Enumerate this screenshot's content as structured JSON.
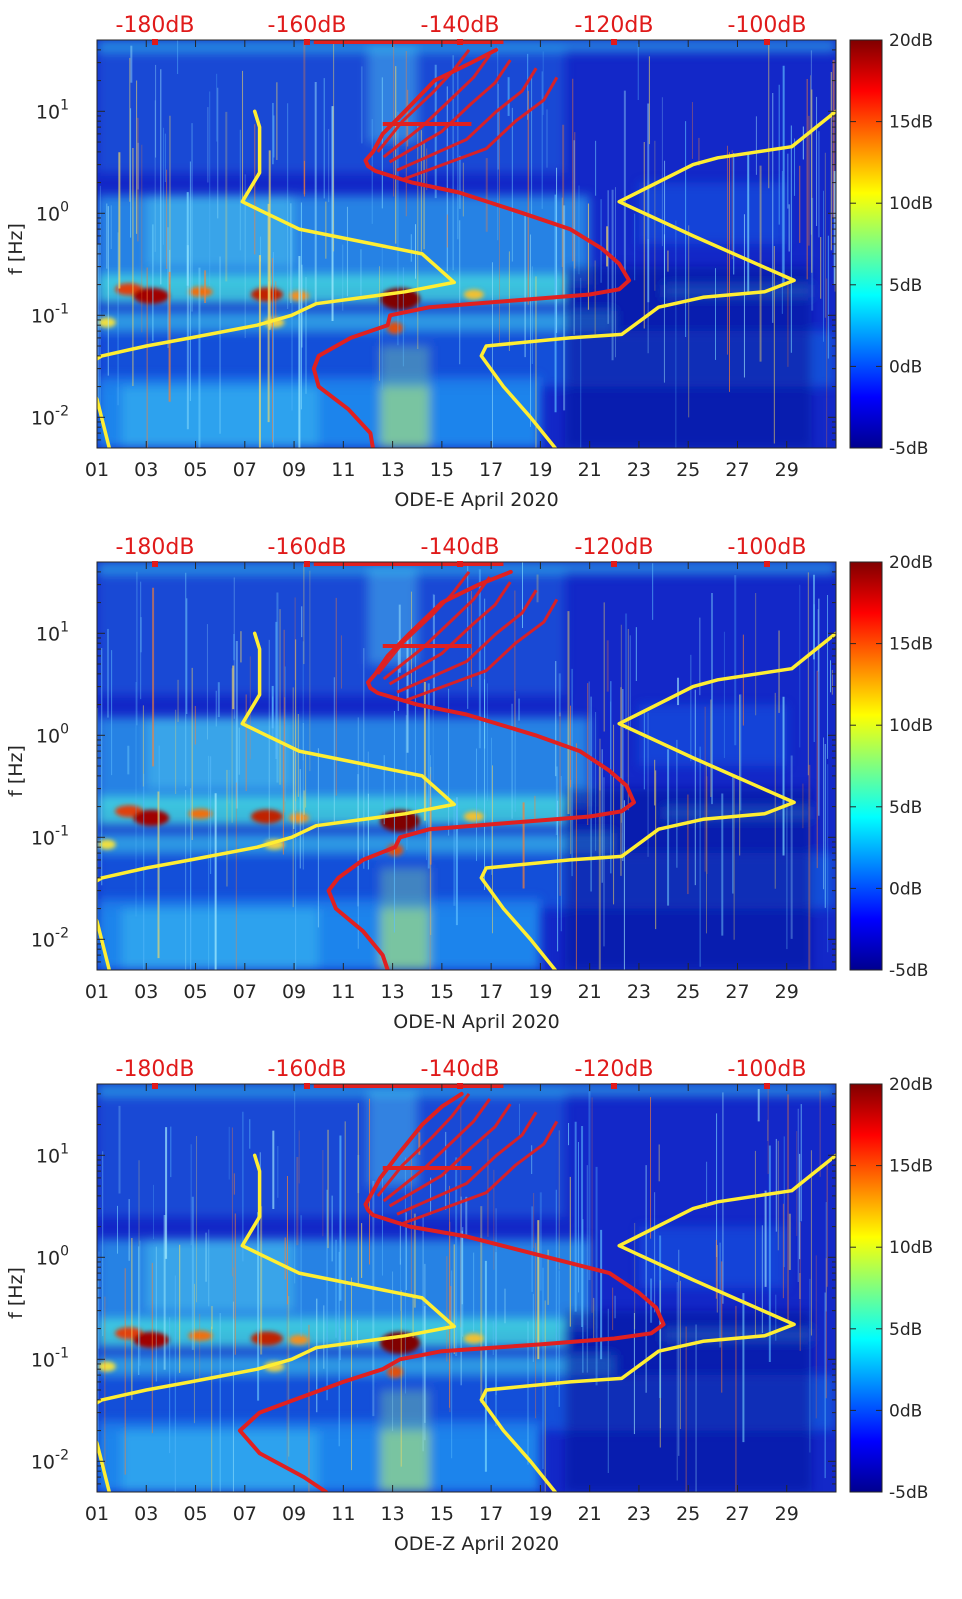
{
  "chart_data": [
    {
      "type": "heatmap",
      "xlabel": "ODE-E April 2020",
      "ylabel": "f [Hz]",
      "x_ticks": [
        "01",
        "03",
        "05",
        "07",
        "09",
        "11",
        "13",
        "15",
        "17",
        "19",
        "21",
        "23",
        "25",
        "27",
        "29"
      ],
      "y_ticks": [
        "10^-2",
        "10^-1",
        "10^0",
        "10^1"
      ],
      "top_ticks": [
        "-180dB",
        "-160dB",
        "-140dB",
        "-120dB",
        "-100dB"
      ],
      "colorbar_ticks": [
        "20dB",
        "15dB",
        "10dB",
        "5dB",
        "0dB",
        "-5dB"
      ],
      "xlim": [
        1,
        31
      ],
      "ylim": [
        0.005,
        50
      ],
      "yscale": "log",
      "colorbar_range": [
        -5,
        20
      ],
      "series": [
        {
          "color": "#ffee33",
          "x": [
            7.4,
            7.6,
            7.6,
            6.9,
            9.2,
            14.2,
            15.5,
            13.5,
            9.9,
            8.9,
            7.5,
            4.8,
            3.0,
            1.2,
            0.3,
            1.0,
            1.5
          ],
          "y": [
            10,
            7,
            2.5,
            1.3,
            0.7,
            0.4,
            0.21,
            0.17,
            0.13,
            0.1,
            0.08,
            0.06,
            0.05,
            0.04,
            0.03,
            0.015,
            0.005
          ]
        },
        {
          "color": "#ffee33",
          "x": [
            31,
            29.2,
            26.2,
            25.2,
            22.2,
            25.2,
            29.3,
            28.1,
            25.6,
            23.8,
            22.3,
            20.2,
            16.8,
            16.6,
            17.5,
            18.6,
            19.6
          ],
          "y": [
            10,
            4.5,
            3.5,
            3.0,
            1.3,
            0.6,
            0.22,
            0.17,
            0.15,
            0.12,
            0.065,
            0.06,
            0.05,
            0.04,
            0.02,
            0.01,
            0.005
          ]
        },
        {
          "color": "#e02020",
          "x": [
            17.2,
            16.2,
            14.7,
            13.5,
            12.6,
            12.2,
            11.9,
            12.0,
            12.3,
            13.8,
            15.7,
            18.3,
            20.2,
            21.5,
            22.2,
            22.6,
            22.2,
            21.0,
            18.0,
            14.5,
            12.9,
            12.8,
            11.3,
            10.0,
            9.8,
            10.0,
            11.2,
            12.1,
            12.2
          ],
          "y": [
            40,
            30,
            20,
            10,
            6,
            4,
            3.3,
            2.9,
            2.6,
            2.0,
            1.6,
            1.0,
            0.7,
            0.45,
            0.32,
            0.22,
            0.18,
            0.16,
            0.14,
            0.12,
            0.1,
            0.08,
            0.06,
            0.04,
            0.03,
            0.02,
            0.012,
            0.007,
            0.005
          ]
        }
      ]
    },
    {
      "type": "heatmap",
      "xlabel": "ODE-N April 2020",
      "ylabel": "f [Hz]",
      "x_ticks": [
        "01",
        "03",
        "05",
        "07",
        "09",
        "11",
        "13",
        "15",
        "17",
        "19",
        "21",
        "23",
        "25",
        "27",
        "29"
      ],
      "y_ticks": [
        "10^-2",
        "10^-1",
        "10^0",
        "10^1"
      ],
      "top_ticks": [
        "-180dB",
        "-160dB",
        "-140dB",
        "-120dB",
        "-100dB"
      ],
      "colorbar_ticks": [
        "20dB",
        "15dB",
        "10dB",
        "5dB",
        "0dB",
        "-5dB"
      ],
      "xlim": [
        1,
        31
      ],
      "ylim": [
        0.005,
        50
      ],
      "yscale": "log",
      "colorbar_range": [
        -5,
        20
      ],
      "series": [
        {
          "color": "#ffee33",
          "x": [
            7.4,
            7.6,
            7.6,
            6.9,
            9.2,
            14.2,
            15.5,
            13.5,
            9.9,
            8.9,
            7.5,
            4.8,
            3.0,
            1.2,
            0.3,
            1.0,
            1.5
          ],
          "y": [
            10,
            7,
            2.5,
            1.3,
            0.7,
            0.4,
            0.21,
            0.17,
            0.13,
            0.1,
            0.08,
            0.06,
            0.05,
            0.04,
            0.03,
            0.015,
            0.005
          ]
        },
        {
          "color": "#ffee33",
          "x": [
            31,
            29.2,
            26.2,
            25.2,
            22.2,
            25.2,
            29.3,
            28.1,
            25.6,
            23.8,
            22.3,
            20.2,
            16.8,
            16.6,
            17.5,
            18.6,
            19.6
          ],
          "y": [
            10,
            4.5,
            3.5,
            3.0,
            1.3,
            0.6,
            0.22,
            0.17,
            0.15,
            0.12,
            0.065,
            0.06,
            0.05,
            0.04,
            0.02,
            0.01,
            0.005
          ]
        },
        {
          "color": "#e02020",
          "x": [
            17.8,
            16.5,
            15.0,
            13.7,
            12.8,
            12.3,
            12.0,
            12.1,
            12.4,
            14.0,
            16.0,
            18.8,
            20.6,
            21.8,
            22.5,
            22.8,
            22.3,
            21.0,
            18.0,
            14.5,
            13.3,
            13.1,
            11.8,
            10.8,
            10.4,
            10.7,
            11.8,
            12.6,
            12.8
          ],
          "y": [
            40,
            30,
            20,
            10,
            6,
            4,
            3.3,
            2.9,
            2.6,
            2.0,
            1.6,
            1.0,
            0.7,
            0.45,
            0.32,
            0.22,
            0.18,
            0.16,
            0.14,
            0.12,
            0.1,
            0.08,
            0.06,
            0.04,
            0.03,
            0.02,
            0.012,
            0.007,
            0.005
          ]
        }
      ]
    },
    {
      "type": "heatmap",
      "xlabel": "ODE-Z April 2020",
      "ylabel": "f [Hz]",
      "x_ticks": [
        "01",
        "03",
        "05",
        "07",
        "09",
        "11",
        "13",
        "15",
        "17",
        "19",
        "21",
        "23",
        "25",
        "27",
        "29"
      ],
      "y_ticks": [
        "10^-2",
        "10^-1",
        "10^0",
        "10^1"
      ],
      "top_ticks": [
        "-180dB",
        "-160dB",
        "-140dB",
        "-120dB",
        "-100dB"
      ],
      "colorbar_ticks": [
        "20dB",
        "15dB",
        "10dB",
        "5dB",
        "0dB",
        "-5dB"
      ],
      "xlim": [
        1,
        31
      ],
      "ylim": [
        0.005,
        50
      ],
      "yscale": "log",
      "colorbar_range": [
        -5,
        20
      ],
      "series": [
        {
          "color": "#ffee33",
          "x": [
            7.4,
            7.6,
            7.6,
            6.9,
            9.2,
            14.2,
            15.5,
            13.5,
            9.9,
            8.9,
            7.5,
            4.8,
            3.0,
            1.2,
            0.3,
            1.0,
            1.5
          ],
          "y": [
            10,
            7,
            2.5,
            1.3,
            0.7,
            0.4,
            0.21,
            0.17,
            0.13,
            0.1,
            0.08,
            0.06,
            0.05,
            0.04,
            0.03,
            0.015,
            0.005
          ]
        },
        {
          "color": "#ffee33",
          "x": [
            31,
            29.2,
            26.2,
            25.2,
            22.2,
            25.2,
            29.3,
            28.1,
            25.6,
            23.8,
            22.3,
            20.2,
            16.8,
            16.6,
            17.5,
            18.6,
            19.6
          ],
          "y": [
            10,
            4.5,
            3.5,
            3.0,
            1.3,
            0.6,
            0.22,
            0.17,
            0.15,
            0.12,
            0.065,
            0.06,
            0.05,
            0.04,
            0.02,
            0.01,
            0.005
          ]
        },
        {
          "color": "#e02020",
          "x": [
            15.8,
            15.0,
            14.2,
            13.2,
            12.5,
            12.1,
            11.9,
            12.0,
            12.2,
            13.7,
            16.0,
            19.3,
            21.8,
            23.0,
            23.7,
            24.0,
            23.5,
            22.0,
            19.0,
            15.0,
            13.3,
            12.6,
            11.0,
            9.0,
            7.6,
            6.8,
            7.6,
            9.4,
            10.3
          ],
          "y": [
            40,
            30,
            20,
            10,
            6,
            4,
            3.3,
            2.9,
            2.6,
            2.0,
            1.6,
            1.0,
            0.7,
            0.45,
            0.32,
            0.22,
            0.18,
            0.16,
            0.14,
            0.12,
            0.1,
            0.08,
            0.06,
            0.04,
            0.03,
            0.02,
            0.012,
            0.007,
            0.005
          ]
        }
      ]
    }
  ]
}
